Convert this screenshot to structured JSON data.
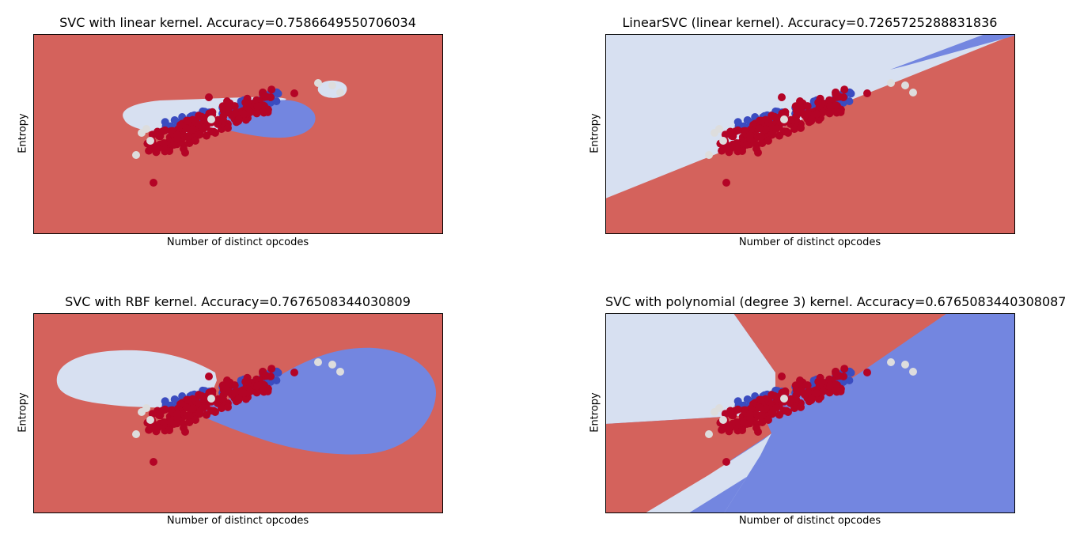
{
  "colors": {
    "region_red": "#d4625c",
    "region_blue": "#7386e0",
    "region_light": "#d7e0f1",
    "point_red": "#b40426",
    "point_blue": "#3b4cc0",
    "point_light": "#dddddd"
  },
  "chart_data": [
    {
      "type": "scatter",
      "title": "SVC with linear kernel. Accuracy=0.7586649550706034",
      "xlabel": "Number of distinct opcodes",
      "ylabel": "Entropy",
      "ticks": "hidden",
      "decision_regions": "red background, light-blue blob on left, blue blob to right, small light-blue island at upper right"
    },
    {
      "type": "scatter",
      "title": "LinearSVC (linear kernel). Accuracy=0.7265725288831836",
      "xlabel": "Number of distinct opcodes",
      "ylabel": "Entropy",
      "ticks": "hidden",
      "decision_regions": "light-blue upper-left half, red lower-right half, thin blue band at top right"
    },
    {
      "type": "scatter",
      "title": "SVC with RBF kernel. Accuracy=0.7676508344030809",
      "xlabel": "Number of distinct opcodes",
      "ylabel": "Entropy",
      "ticks": "hidden",
      "decision_regions": "red background, light-blue lobe on left, large blue lobe on right"
    },
    {
      "type": "scatter",
      "title": "SVC with polynomial (degree 3) kernel. Accuracy=0.6765083440308087",
      "xlabel": "Number of distinct opcodes",
      "ylabel": "Entropy",
      "ticks": "hidden",
      "decision_regions": "light-blue upper-left, red top and left wedge, blue lower right, light-blue sliver at bottom"
    }
  ]
}
